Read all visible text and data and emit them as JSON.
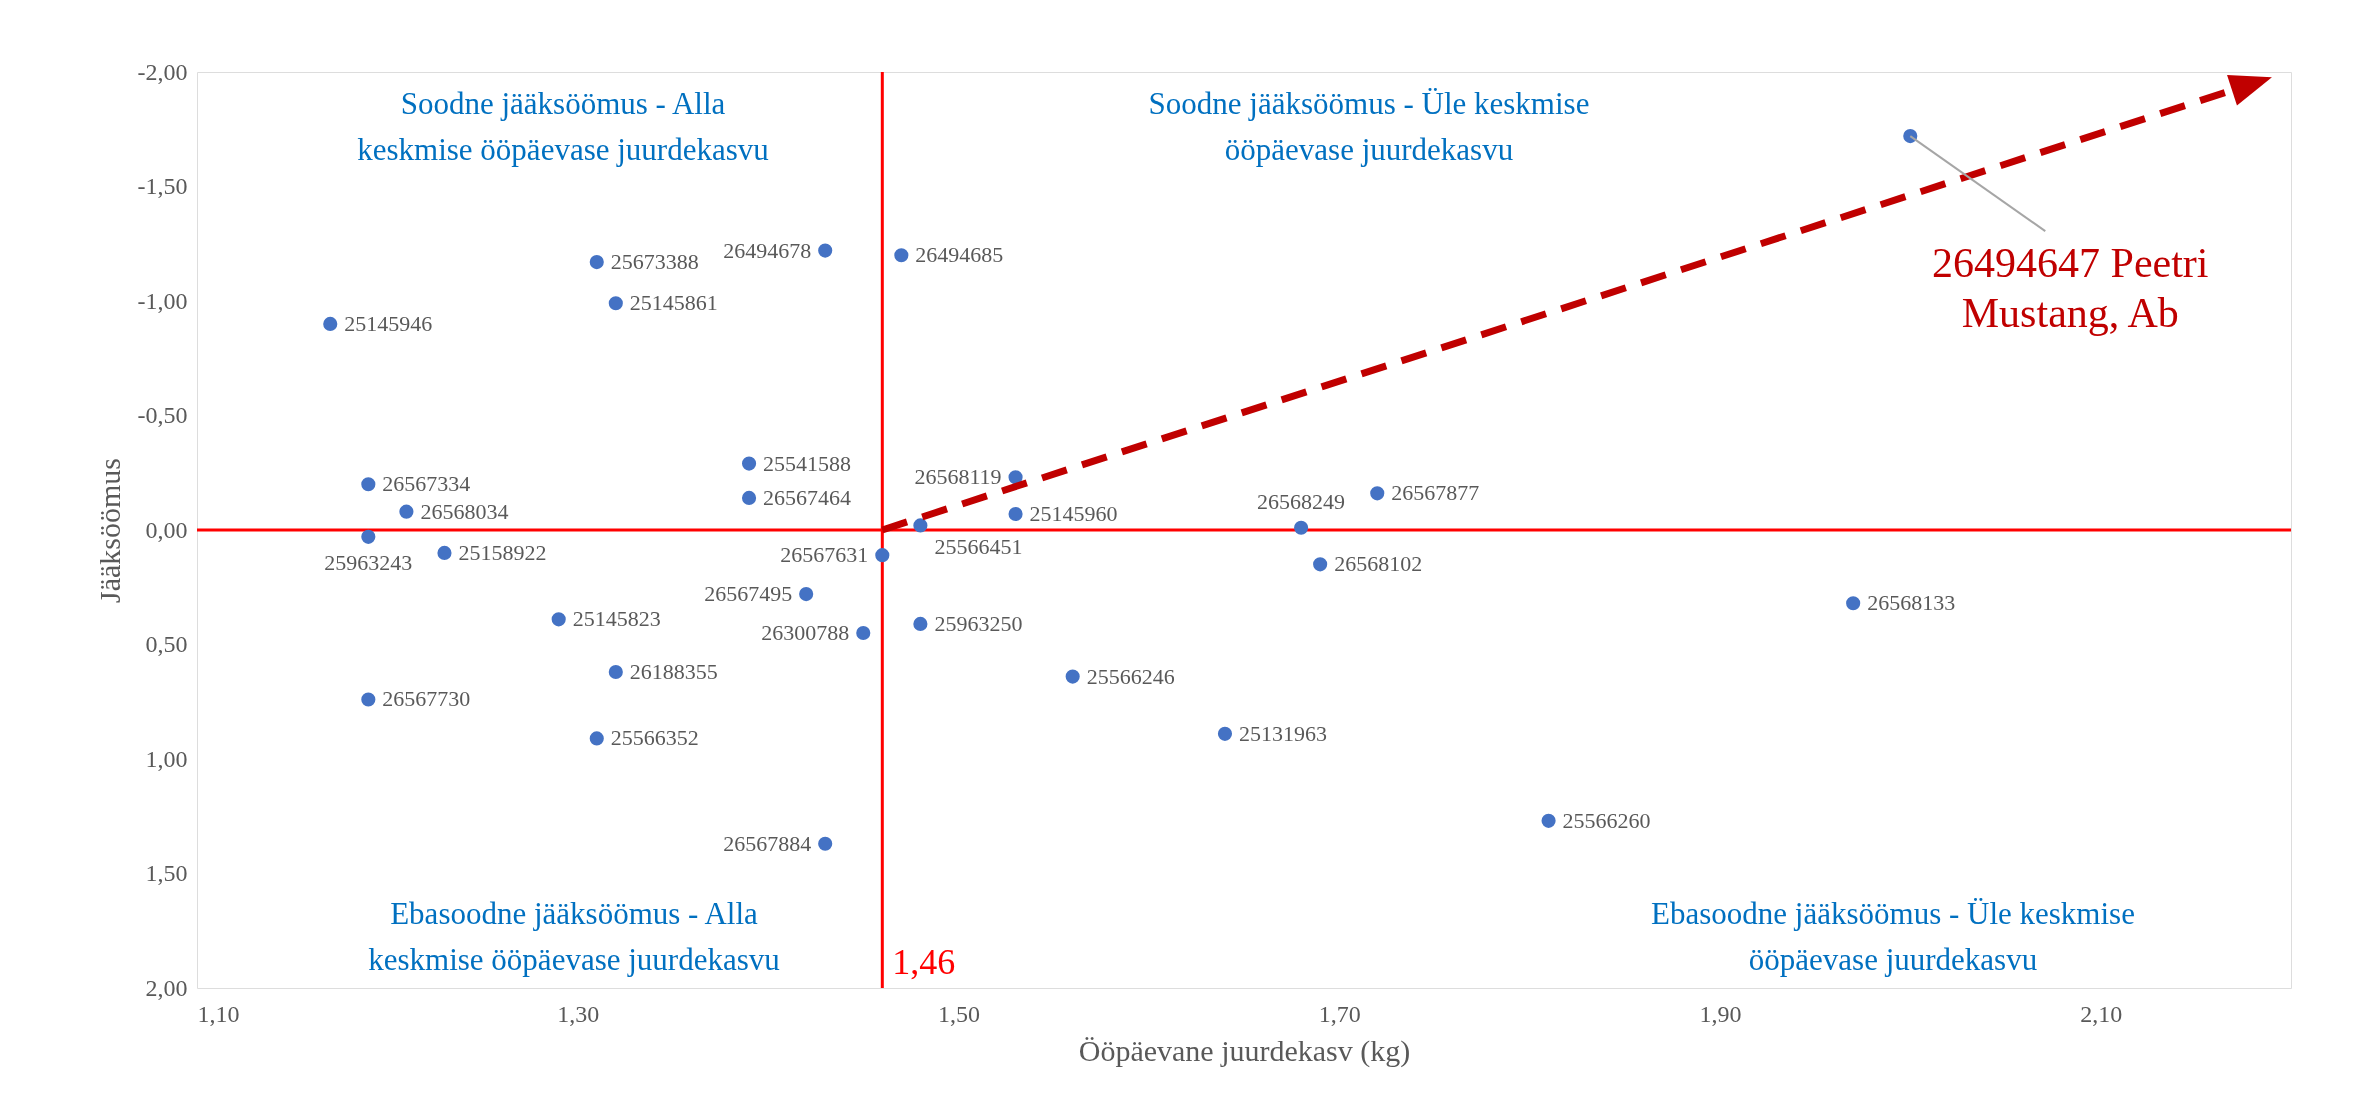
{
  "chart_data": {
    "type": "scatter",
    "xlabel": "Ööpäevane juurdekasv (kg)",
    "ylabel": "Jääksöömus",
    "xlim": [
      1.1,
      2.2
    ],
    "xticks": [
      {
        "value": 1.1,
        "label": "1,10"
      },
      {
        "value": 1.3,
        "label": "1,30"
      },
      {
        "value": 1.5,
        "label": "1,50"
      },
      {
        "value": 1.7,
        "label": "1,70"
      },
      {
        "value": 1.9,
        "label": "1,90"
      },
      {
        "value": 2.1,
        "label": "2,10"
      }
    ],
    "ylim": [
      2.0,
      -2.0
    ],
    "yticks": [
      {
        "value": -2,
        "label": "-2,00"
      },
      {
        "value": -1.5,
        "label": "-1,50"
      },
      {
        "value": -1,
        "label": "-1,00"
      },
      {
        "value": -0.5,
        "label": "-0,50"
      },
      {
        "value": 0,
        "label": "0,00"
      },
      {
        "value": 0.5,
        "label": "0,50"
      },
      {
        "value": 1,
        "label": "1,00"
      },
      {
        "value": 1.5,
        "label": "1,50"
      },
      {
        "value": 2,
        "label": "2,00"
      }
    ],
    "grid": false,
    "marker": "circle",
    "series": [
      {
        "color": "#4472c4",
        "x": [
          1.17,
          1.31,
          1.32,
          1.43,
          1.47,
          1.19,
          1.21,
          1.19,
          1.23,
          1.39,
          1.39,
          1.48,
          1.53,
          1.53,
          1.46,
          1.42,
          1.45,
          1.48,
          1.29,
          1.32,
          1.19,
          1.31,
          1.43,
          1.56,
          1.64,
          1.68,
          1.69,
          1.72,
          1.97,
          1.81
        ],
        "values": [
          -0.9,
          -1.17,
          -0.99,
          -1.22,
          -1.2,
          -0.2,
          -0.08,
          0.03,
          0.1,
          -0.29,
          -0.14,
          -0.02,
          -0.23,
          -0.07,
          0.11,
          0.28,
          0.45,
          0.41,
          0.39,
          0.62,
          0.74,
          0.91,
          1.37,
          0.64,
          0.89,
          -0.01,
          0.15,
          -0.16,
          0.32,
          1.27
        ]
      },
      {
        "color": "#4472c4",
        "x": [
          2.0
        ],
        "values": [
          -1.72
        ]
      },
      {
        "type": "line",
        "color": "#c00000",
        "line_style": "dashed",
        "marker": "none",
        "x": [
          1.46,
          2.18
        ],
        "values": [
          0,
          -1.95
        ]
      }
    ],
    "ref_lines": [
      {
        "axis": "x",
        "value": 1.46,
        "label": "1,46",
        "color": "#ff0000"
      },
      {
        "axis": "y",
        "value": 0,
        "color": "#ff0000"
      }
    ],
    "annotations": [
      "Soodne jääksöömus - Alla\nkeskmise ööpäevase juurdekasvu",
      "Soodne jääksöömus - Üle keskmise\nööpäevase juurdekasvu",
      "Ebasoodne jääksöömus - Alla\nkeskmise ööpäevase juurdekasvu",
      "Ebasoodne jääksöömus - Üle keskmise\nööpäevase juurdekasvu",
      {
        "text": "25145946",
        "x": 1.17,
        "y": -0.9
      },
      {
        "text": "25673388",
        "x": 1.31,
        "y": -1.17
      },
      {
        "text": "25145861",
        "x": 1.32,
        "y": -0.99
      },
      {
        "text": "26494678",
        "x": 1.43,
        "y": -1.22
      },
      {
        "text": "26494685",
        "x": 1.47,
        "y": -1.2
      },
      {
        "text": "26567334",
        "x": 1.19,
        "y": -0.2
      },
      {
        "text": "26568034",
        "x": 1.21,
        "y": -0.08
      },
      {
        "text": "25963243",
        "x": 1.19,
        "y": 0.03
      },
      {
        "text": "25158922",
        "x": 1.23,
        "y": 0.1
      },
      {
        "text": "25541588",
        "x": 1.39,
        "y": -0.29
      },
      {
        "text": "26567464",
        "x": 1.39,
        "y": -0.14
      },
      {
        "text": "25566451",
        "x": 1.48,
        "y": -0.02
      },
      {
        "text": "26568119",
        "x": 1.53,
        "y": -0.23
      },
      {
        "text": "25145960",
        "x": 1.53,
        "y": -0.07
      },
      {
        "text": "26567631",
        "x": 1.46,
        "y": 0.11
      },
      {
        "text": "26567495",
        "x": 1.42,
        "y": 0.28
      },
      {
        "text": "26300788",
        "x": 1.45,
        "y": 0.45
      },
      {
        "text": "25963250",
        "x": 1.48,
        "y": 0.41
      },
      {
        "text": "25145823",
        "x": 1.29,
        "y": 0.39
      },
      {
        "text": "26188355",
        "x": 1.32,
        "y": 0.62
      },
      {
        "text": "26567730",
        "x": 1.19,
        "y": 0.74
      },
      {
        "text": "25566352",
        "x": 1.31,
        "y": 0.91
      },
      {
        "text": "26567884",
        "x": 1.43,
        "y": 1.37
      },
      {
        "text": "25566246",
        "x": 1.56,
        "y": 0.64
      },
      {
        "text": "25131963",
        "x": 1.64,
        "y": 0.89
      },
      {
        "text": "26568249",
        "x": 1.68,
        "y": -0.01
      },
      {
        "text": "26568102",
        "x": 1.69,
        "y": 0.15
      },
      {
        "text": "26567877",
        "x": 1.72,
        "y": -0.16
      },
      {
        "text": "26568133",
        "x": 1.97,
        "y": 0.32
      },
      {
        "text": "25566260",
        "x": 1.81,
        "y": 1.27
      },
      {
        "text": "26494647 Peetri\nMustang, Ab",
        "x": 2.0,
        "y": -1.72
      }
    ]
  }
}
